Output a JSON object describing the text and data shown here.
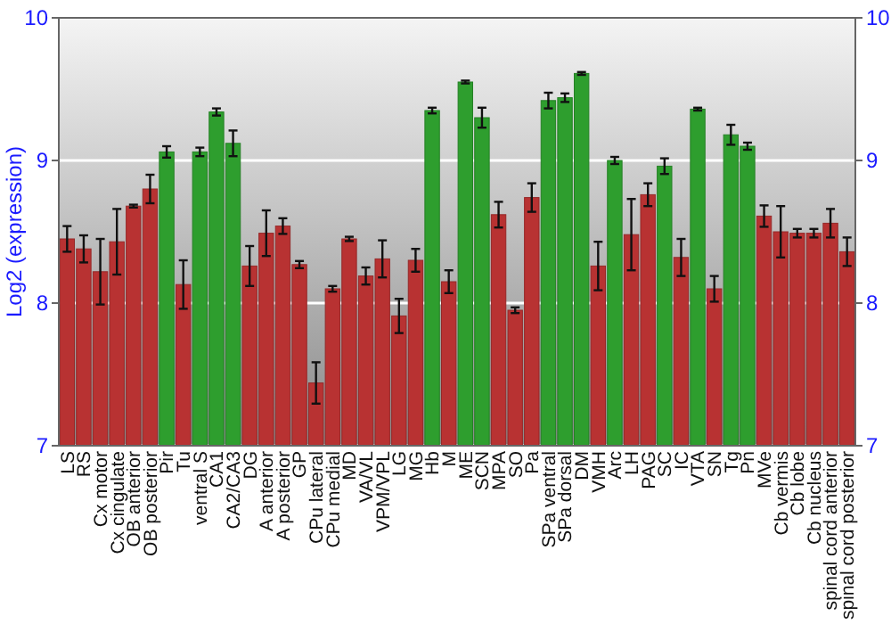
{
  "chart_data": {
    "type": "bar",
    "ylabel": "Log2 (expression)",
    "categories": [
      "LS",
      "RS",
      "Cx motor",
      "Cx cingulate",
      "OB anterior",
      "OB posterior",
      "Pir",
      "Tu",
      "ventral S",
      "CA1",
      "CA2/CA3",
      "DG",
      "A anterior",
      "A posterior",
      "GP",
      "CPu lateral",
      "CPu medial",
      "MD",
      "VA/VL",
      "VPM/VPL",
      "LG",
      "MG",
      "Hb",
      "M",
      "ME",
      "SCN",
      "MPA",
      "SO",
      "Pa",
      "SPa ventral",
      "SPa dorsal",
      "DM",
      "VMH",
      "Arc",
      "LH",
      "PAG",
      "SC",
      "IC",
      "VTA",
      "SN",
      "Tg",
      "Pn",
      "MVe",
      "Cb vermis",
      "Cb lobe",
      "Cb nucleus",
      "spinal cord anterior",
      "spinal cord posterior"
    ],
    "values": [
      8.45,
      8.38,
      8.22,
      8.43,
      8.68,
      8.8,
      9.06,
      8.13,
      9.06,
      9.34,
      9.12,
      8.26,
      8.49,
      8.54,
      8.27,
      7.44,
      8.1,
      8.45,
      8.19,
      8.31,
      7.91,
      8.3,
      9.35,
      8.15,
      9.55,
      9.3,
      8.62,
      7.95,
      8.74,
      9.42,
      9.44,
      9.61,
      8.26,
      9.0,
      8.48,
      8.76,
      8.96,
      8.32,
      9.36,
      8.1,
      9.18,
      9.1,
      8.61,
      8.5,
      8.49,
      8.49,
      8.56,
      8.36
    ],
    "errors": [
      0.09,
      0.095,
      0.23,
      0.23,
      0.01,
      0.1,
      0.04,
      0.17,
      0.03,
      0.025,
      0.09,
      0.14,
      0.16,
      0.055,
      0.025,
      0.145,
      0.02,
      0.015,
      0.06,
      0.13,
      0.12,
      0.08,
      0.02,
      0.08,
      0.01,
      0.07,
      0.09,
      0.02,
      0.1,
      0.055,
      0.03,
      0.01,
      0.17,
      0.025,
      0.25,
      0.08,
      0.055,
      0.13,
      0.01,
      0.09,
      0.07,
      0.025,
      0.075,
      0.18,
      0.03,
      0.03,
      0.1,
      0.1
    ],
    "colors": [
      "#b83232",
      "#b83232",
      "#b83232",
      "#b83232",
      "#b83232",
      "#b83232",
      "#2e9e2e",
      "#b83232",
      "#2e9e2e",
      "#2e9e2e",
      "#2e9e2e",
      "#b83232",
      "#b83232",
      "#b83232",
      "#b83232",
      "#b83232",
      "#b83232",
      "#b83232",
      "#b83232",
      "#b83232",
      "#b83232",
      "#b83232",
      "#2e9e2e",
      "#b83232",
      "#2e9e2e",
      "#2e9e2e",
      "#b83232",
      "#b83232",
      "#b83232",
      "#2e9e2e",
      "#2e9e2e",
      "#2e9e2e",
      "#b83232",
      "#2e9e2e",
      "#b83232",
      "#b83232",
      "#2e9e2e",
      "#b83232",
      "#2e9e2e",
      "#b83232",
      "#2e9e2e",
      "#2e9e2e",
      "#b83232",
      "#b83232",
      "#b83232",
      "#b83232",
      "#b83232",
      "#b83232"
    ],
    "ylim": [
      7,
      10
    ],
    "yticks": [
      7,
      8,
      9,
      10
    ],
    "y2lim": [
      7,
      10
    ],
    "y2ticks": [
      7,
      8,
      9,
      10
    ],
    "grid": "y"
  }
}
